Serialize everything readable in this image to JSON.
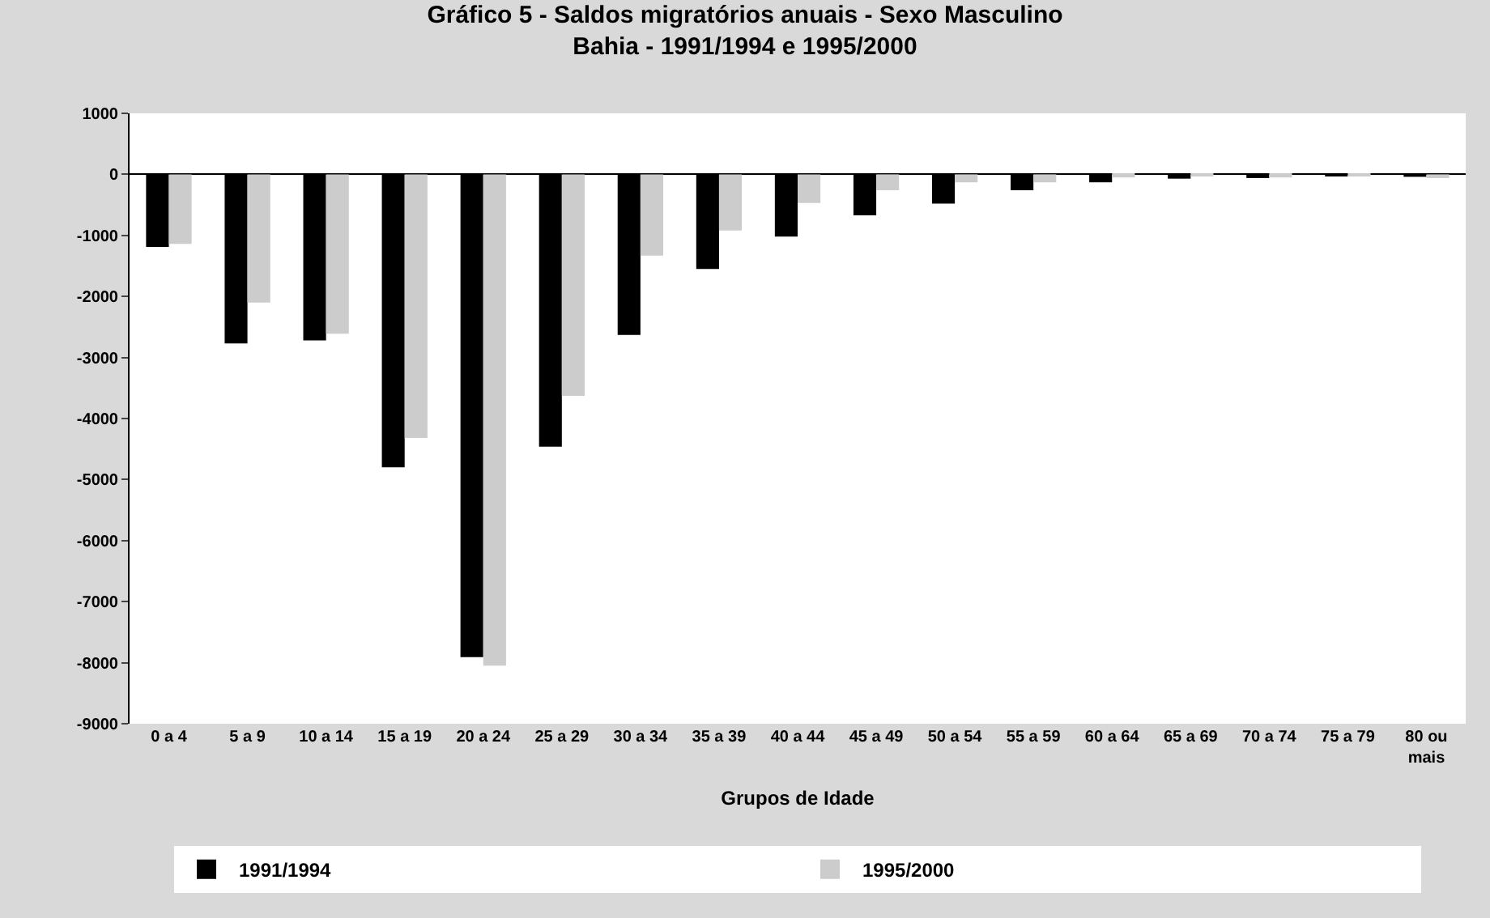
{
  "chart_data": {
    "type": "bar",
    "title": "Gráfico 5 - Saldos migratórios anuais - Sexo Masculino\nBahia - 1991/1994 e 1995/2000",
    "xlabel": "Grupos de Idade",
    "categories": [
      "0 a 4",
      "5 a 9",
      "10 a 14",
      "15 a 19",
      "20 a 24",
      "25 a 29",
      "30 a 34",
      "35 a 39",
      "40 a 44",
      "45 a 49",
      "50 a 54",
      "55 a 59",
      "60 a 64",
      "65 a 69",
      "70 a 74",
      "75 a 79",
      "80 ou mais"
    ],
    "series": [
      {
        "name": "1991/1994",
        "color": "#000000",
        "values": [
          -1190,
          -2770,
          -2720,
          -4800,
          -7910,
          -4460,
          -2630,
          -1550,
          -1020,
          -670,
          -480,
          -260,
          -130,
          -70,
          -60,
          -30,
          -40
        ]
      },
      {
        "name": "1995/2000",
        "color": "#cccccc",
        "values": [
          -1140,
          -2100,
          -2610,
          -4320,
          -8050,
          -3630,
          -1330,
          -920,
          -470,
          -260,
          -130,
          -130,
          -50,
          -10,
          -50,
          -30,
          -60
        ]
      }
    ],
    "ylim": [
      -9000,
      1000
    ],
    "yticks": [
      -9000,
      -8000,
      -7000,
      -6000,
      -5000,
      -4000,
      -3000,
      -2000,
      -1000,
      0,
      1000
    ],
    "legend": "bottom"
  }
}
